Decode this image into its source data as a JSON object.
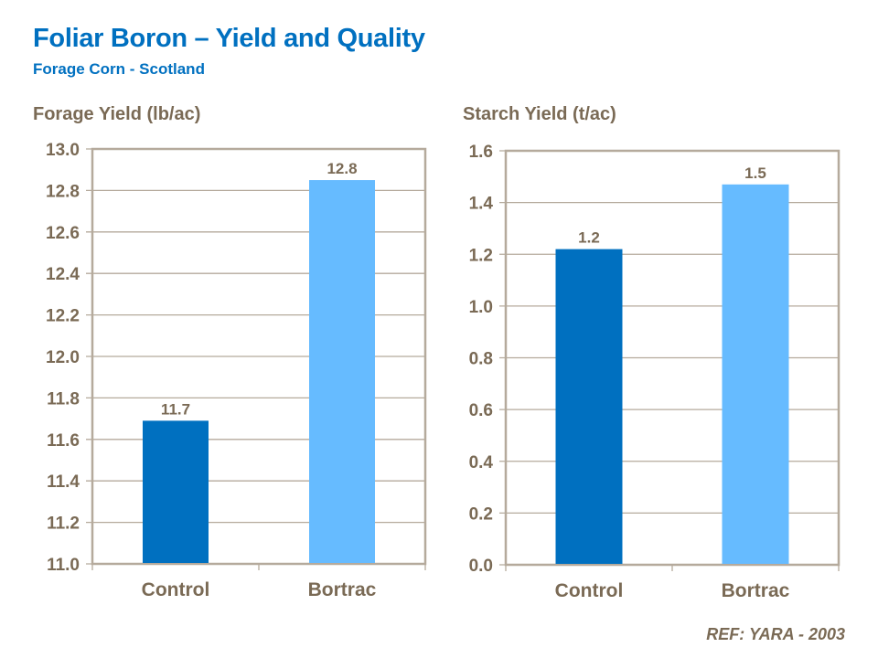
{
  "header": {
    "title": "Foliar Boron – Yield and Quality",
    "subtitle": "Forage Corn - Scotland"
  },
  "footer": {
    "reference": "REF: YARA - 2003"
  },
  "colors": {
    "title": "#0070c0",
    "text": "#7a6a55",
    "grid": "#b5aa9c",
    "control": "#0070c0",
    "bortrac": "#66bbff"
  },
  "chart_data": [
    {
      "type": "bar",
      "title": "Forage Yield (lb/ac)",
      "categories": [
        "Control",
        "Bortrac"
      ],
      "values": [
        11.69,
        12.85
      ],
      "data_labels": [
        "11.7",
        "12.8"
      ],
      "bar_colors": [
        "#0070c0",
        "#66bbff"
      ],
      "ylim": [
        11.0,
        13.0
      ],
      "yticks": [
        "11.0",
        "11.2",
        "11.4",
        "11.6",
        "11.8",
        "12.0",
        "12.2",
        "12.4",
        "12.6",
        "12.8",
        "13.0"
      ],
      "grid": true
    },
    {
      "type": "bar",
      "title": "Starch Yield (t/ac)",
      "categories": [
        "Control",
        "Bortrac"
      ],
      "values": [
        1.22,
        1.47
      ],
      "data_labels": [
        "1.2",
        "1.5"
      ],
      "bar_colors": [
        "#0070c0",
        "#66bbff"
      ],
      "ylim": [
        0.0,
        1.6
      ],
      "yticks": [
        "0.0",
        "0.2",
        "0.4",
        "0.6",
        "0.8",
        "1.0",
        "1.2",
        "1.4",
        "1.6"
      ],
      "grid": true
    }
  ]
}
